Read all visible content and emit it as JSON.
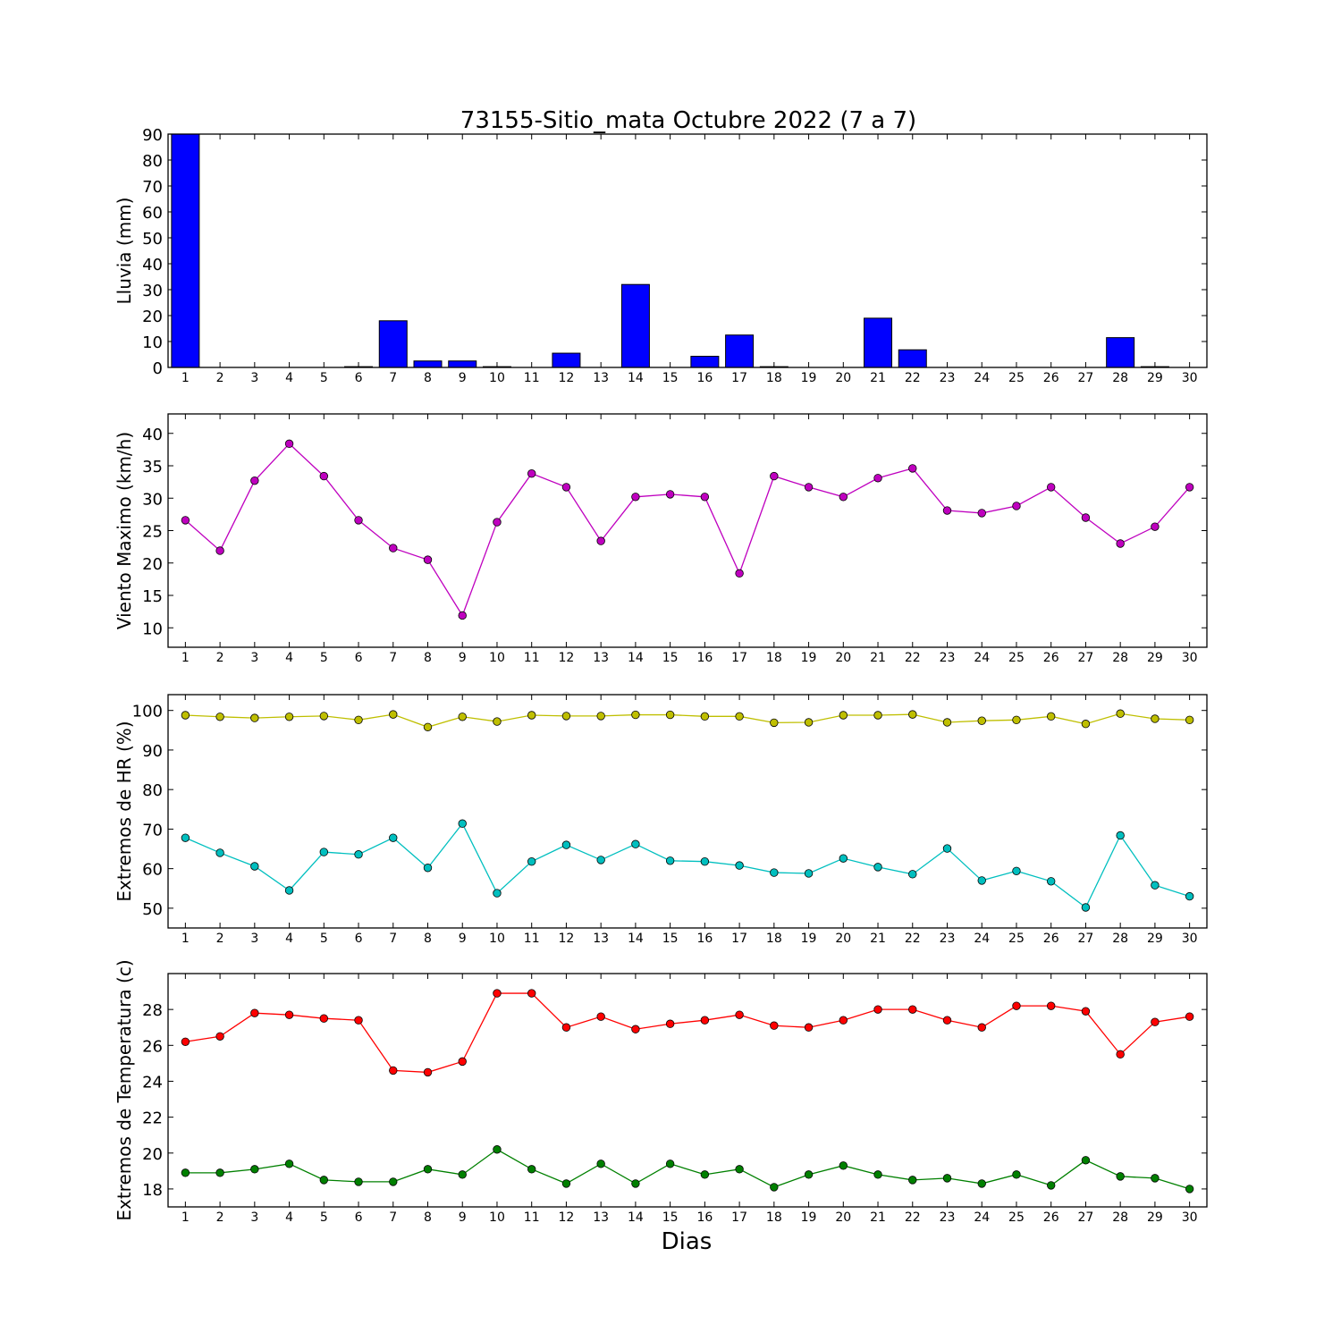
{
  "title": "73155-Sitio_mata Octubre 2022  (7 a 7)",
  "xlabel": "Dias",
  "chart_data": [
    {
      "type": "bar",
      "ylabel": "Lluvia (mm)",
      "ylim": [
        0,
        90
      ],
      "yticks": [
        0,
        10,
        20,
        30,
        40,
        50,
        60,
        70,
        80,
        90
      ],
      "categories": [
        1,
        2,
        3,
        4,
        5,
        6,
        7,
        8,
        9,
        10,
        11,
        12,
        13,
        14,
        15,
        16,
        17,
        18,
        19,
        20,
        21,
        22,
        23,
        24,
        25,
        26,
        27,
        28,
        29,
        30
      ],
      "series": [
        {
          "color": "#0000ff",
          "values": [
            90,
            0,
            0,
            0,
            0,
            0.3,
            18,
            2.5,
            2.5,
            0.3,
            0,
            5.5,
            0,
            32,
            0,
            4.3,
            12.5,
            0.3,
            0,
            0,
            19,
            6.8,
            0,
            0,
            0,
            0,
            0,
            11.5,
            0.3,
            0
          ]
        }
      ]
    },
    {
      "type": "line",
      "ylabel": "Viento Maximo (km/h)",
      "ylim": [
        7,
        43
      ],
      "yticks": [
        10,
        15,
        20,
        25,
        30,
        35,
        40
      ],
      "categories": [
        1,
        2,
        3,
        4,
        5,
        6,
        7,
        8,
        9,
        10,
        11,
        12,
        13,
        14,
        15,
        16,
        17,
        18,
        19,
        20,
        21,
        22,
        23,
        24,
        25,
        26,
        27,
        28,
        29,
        30
      ],
      "series": [
        {
          "color": "#bf00bf",
          "values": [
            26.6,
            21.9,
            32.7,
            38.4,
            33.4,
            26.6,
            22.3,
            20.5,
            11.9,
            26.3,
            33.8,
            31.7,
            23.4,
            30.2,
            30.6,
            30.2,
            18.4,
            33.4,
            31.7,
            30.2,
            33.1,
            34.6,
            28.1,
            27.7,
            28.8,
            31.7,
            27.0,
            23.0,
            25.6,
            31.7
          ]
        }
      ]
    },
    {
      "type": "line",
      "ylabel": "Extremos de HR (%)",
      "ylim": [
        45,
        104
      ],
      "yticks": [
        50,
        60,
        70,
        80,
        90,
        100
      ],
      "categories": [
        1,
        2,
        3,
        4,
        5,
        6,
        7,
        8,
        9,
        10,
        11,
        12,
        13,
        14,
        15,
        16,
        17,
        18,
        19,
        20,
        21,
        22,
        23,
        24,
        25,
        26,
        27,
        28,
        29,
        30
      ],
      "series": [
        {
          "color": "#bfbf00",
          "values": [
            98.8,
            98.4,
            98.1,
            98.4,
            98.6,
            97.6,
            99.0,
            95.8,
            98.4,
            97.2,
            98.8,
            98.6,
            98.6,
            98.9,
            98.9,
            98.5,
            98.5,
            96.9,
            97.0,
            98.8,
            98.8,
            99.0,
            97.0,
            97.4,
            97.6,
            98.5,
            96.6,
            99.2,
            97.9,
            97.6
          ]
        },
        {
          "color": "#00bfbf",
          "values": [
            67.8,
            64.0,
            60.6,
            54.5,
            64.2,
            63.6,
            67.8,
            60.2,
            71.4,
            53.8,
            61.8,
            66.0,
            62.2,
            66.2,
            62.0,
            61.8,
            60.8,
            59.0,
            58.8,
            62.6,
            60.4,
            58.6,
            65.1,
            57.0,
            59.4,
            56.8,
            50.2,
            68.4,
            55.8,
            53.0
          ]
        }
      ]
    },
    {
      "type": "line",
      "ylabel": "Extremos de Temperatura (c)",
      "ylim": [
        17,
        30
      ],
      "yticks": [
        18,
        20,
        22,
        24,
        26,
        28
      ],
      "categories": [
        1,
        2,
        3,
        4,
        5,
        6,
        7,
        8,
        9,
        10,
        11,
        12,
        13,
        14,
        15,
        16,
        17,
        18,
        19,
        20,
        21,
        22,
        23,
        24,
        25,
        26,
        27,
        28,
        29,
        30
      ],
      "series": [
        {
          "color": "#ff0000",
          "values": [
            26.2,
            26.5,
            27.8,
            27.7,
            27.5,
            27.4,
            24.6,
            24.5,
            25.1,
            28.9,
            28.9,
            27.0,
            27.6,
            26.9,
            27.2,
            27.4,
            27.7,
            27.1,
            27.0,
            27.4,
            28.0,
            28.0,
            27.4,
            27.0,
            28.2,
            28.2,
            27.9,
            25.5,
            27.3,
            27.6
          ]
        },
        {
          "color": "#008000",
          "values": [
            18.9,
            18.9,
            19.1,
            19.4,
            18.5,
            18.4,
            18.4,
            19.1,
            18.8,
            20.2,
            19.1,
            18.3,
            19.4,
            18.3,
            19.4,
            18.8,
            19.1,
            18.1,
            18.8,
            19.3,
            18.8,
            18.5,
            18.6,
            18.3,
            18.8,
            18.2,
            19.6,
            18.7,
            18.6,
            18.0
          ]
        }
      ]
    }
  ]
}
